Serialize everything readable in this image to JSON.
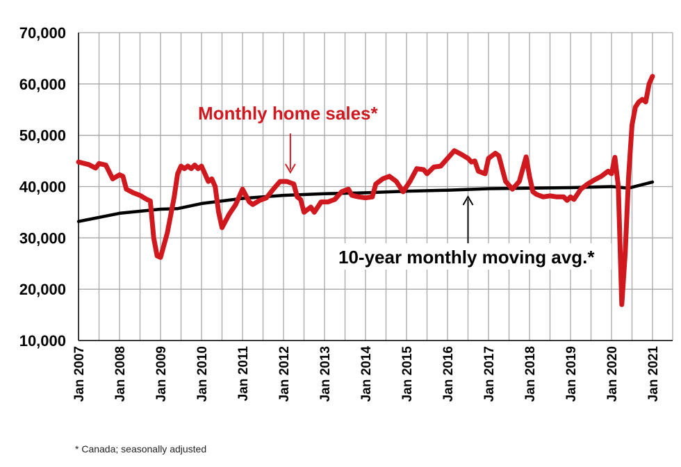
{
  "chart_data": {
    "type": "line",
    "title": "",
    "xlabel": "",
    "ylabel": "",
    "ylim": [
      10000,
      70000
    ],
    "yticks": [
      "10,000",
      "20,000",
      "30,000",
      "40,000",
      "50,000",
      "60,000",
      "70,000"
    ],
    "ytick_values": [
      10000,
      20000,
      30000,
      40000,
      50000,
      60000,
      70000
    ],
    "xticks": [
      "Jan 2007",
      "Jan 2008",
      "Jan 2009",
      "Jan 2010",
      "Jan 2011",
      "Jan 2012",
      "Jan 2013",
      "Jan 2014",
      "Jan 2015",
      "Jan 2016",
      "Jan 2017",
      "Jan 2018",
      "Jan 2019",
      "Jan 2020",
      "Jan 2021"
    ],
    "xlim": [
      "2007-01",
      "2021-01"
    ],
    "grid": true,
    "annotations": [
      {
        "text": "Monthly home sales*",
        "color": "#d0181f",
        "points_to": "2012-03"
      },
      {
        "text": "10-year monthly moving avg.*",
        "color": "#000000",
        "points_to": "2016-07"
      }
    ],
    "footnote": "* Canada; seasonally adjusted",
    "series": [
      {
        "name": "Monthly home sales*",
        "color": "#d0181f",
        "points": [
          [
            "2007-01",
            44800
          ],
          [
            "2007-04",
            44300
          ],
          [
            "2007-06",
            43600
          ],
          [
            "2007-07",
            44500
          ],
          [
            "2007-09",
            44200
          ],
          [
            "2007-11",
            41500
          ],
          [
            "2008-01",
            42300
          ],
          [
            "2008-02",
            42000
          ],
          [
            "2008-03",
            39500
          ],
          [
            "2008-05",
            38800
          ],
          [
            "2008-07",
            38300
          ],
          [
            "2008-09",
            37500
          ],
          [
            "2008-10",
            37200
          ],
          [
            "2008-11",
            30000
          ],
          [
            "2008-12",
            26500
          ],
          [
            "2009-01",
            26200
          ],
          [
            "2009-03",
            31000
          ],
          [
            "2009-05",
            38000
          ],
          [
            "2009-06",
            42500
          ],
          [
            "2009-07",
            44000
          ],
          [
            "2009-08",
            43500
          ],
          [
            "2009-09",
            44000
          ],
          [
            "2009-10",
            43500
          ],
          [
            "2009-11",
            44200
          ],
          [
            "2009-12",
            43500
          ],
          [
            "2010-01",
            44000
          ],
          [
            "2010-02",
            42500
          ],
          [
            "2010-03",
            41000
          ],
          [
            "2010-04",
            41500
          ],
          [
            "2010-05",
            40000
          ],
          [
            "2010-06",
            35000
          ],
          [
            "2010-07",
            32000
          ],
          [
            "2010-09",
            34500
          ],
          [
            "2010-11",
            36500
          ],
          [
            "2011-01",
            39500
          ],
          [
            "2011-03",
            37000
          ],
          [
            "2011-04",
            36500
          ],
          [
            "2011-06",
            37300
          ],
          [
            "2011-08",
            37800
          ],
          [
            "2011-10",
            39500
          ],
          [
            "2011-12",
            41000
          ],
          [
            "2012-02",
            41000
          ],
          [
            "2012-04",
            40500
          ],
          [
            "2012-05",
            38000
          ],
          [
            "2012-06",
            37500
          ],
          [
            "2012-07",
            35000
          ],
          [
            "2012-09",
            36000
          ],
          [
            "2012-10",
            35000
          ],
          [
            "2012-12",
            37000
          ],
          [
            "2013-02",
            37000
          ],
          [
            "2013-04",
            37500
          ],
          [
            "2013-06",
            39000
          ],
          [
            "2013-08",
            39500
          ],
          [
            "2013-09",
            38300
          ],
          [
            "2013-11",
            38000
          ],
          [
            "2014-01",
            37800
          ],
          [
            "2014-03",
            38000
          ],
          [
            "2014-04",
            40500
          ],
          [
            "2014-06",
            41500
          ],
          [
            "2014-08",
            42000
          ],
          [
            "2014-10",
            41000
          ],
          [
            "2014-12",
            39000
          ],
          [
            "2015-02",
            41000
          ],
          [
            "2015-04",
            43500
          ],
          [
            "2015-06",
            43300
          ],
          [
            "2015-07",
            42500
          ],
          [
            "2015-09",
            43800
          ],
          [
            "2015-11",
            44000
          ],
          [
            "2016-01",
            45500
          ],
          [
            "2016-03",
            47000
          ],
          [
            "2016-05",
            46300
          ],
          [
            "2016-07",
            45500
          ],
          [
            "2016-08",
            44800
          ],
          [
            "2016-09",
            45000
          ],
          [
            "2016-10",
            43000
          ],
          [
            "2016-12",
            42500
          ],
          [
            "2017-01",
            45500
          ],
          [
            "2017-03",
            46500
          ],
          [
            "2017-04",
            46000
          ],
          [
            "2017-06",
            41000
          ],
          [
            "2017-08",
            39500
          ],
          [
            "2017-10",
            41000
          ],
          [
            "2017-12",
            45800
          ],
          [
            "2018-01",
            42000
          ],
          [
            "2018-02",
            39000
          ],
          [
            "2018-03",
            38500
          ],
          [
            "2018-05",
            38000
          ],
          [
            "2018-07",
            38200
          ],
          [
            "2018-09",
            38000
          ],
          [
            "2018-11",
            38000
          ],
          [
            "2018-12",
            37300
          ],
          [
            "2019-01",
            38000
          ],
          [
            "2019-02",
            37500
          ],
          [
            "2019-04",
            39500
          ],
          [
            "2019-06",
            40500
          ],
          [
            "2019-08",
            41300
          ],
          [
            "2019-10",
            42000
          ],
          [
            "2019-12",
            43000
          ],
          [
            "2020-01",
            42500
          ],
          [
            "2020-02",
            45700
          ],
          [
            "2020-03",
            40000
          ],
          [
            "2020-04",
            17000
          ],
          [
            "2020-05",
            27000
          ],
          [
            "2020-06",
            42000
          ],
          [
            "2020-07",
            52000
          ],
          [
            "2020-08",
            55500
          ],
          [
            "2020-09",
            56500
          ],
          [
            "2020-10",
            57000
          ],
          [
            "2020-11",
            56500
          ],
          [
            "2020-12",
            60000
          ],
          [
            "2021-01",
            61500
          ]
        ]
      },
      {
        "name": "10-year monthly moving avg.*",
        "color": "#000000",
        "points": [
          [
            "2007-01",
            33200
          ],
          [
            "2008-01",
            34800
          ],
          [
            "2009-01",
            35600
          ],
          [
            "2009-06",
            35700
          ],
          [
            "2010-01",
            36700
          ],
          [
            "2011-01",
            37700
          ],
          [
            "2012-01",
            38300
          ],
          [
            "2013-01",
            38600
          ],
          [
            "2014-01",
            38800
          ],
          [
            "2015-01",
            39100
          ],
          [
            "2016-01",
            39300
          ],
          [
            "2017-01",
            39600
          ],
          [
            "2018-01",
            39700
          ],
          [
            "2019-01",
            39800
          ],
          [
            "2020-01",
            40000
          ],
          [
            "2020-06",
            39700
          ],
          [
            "2021-01",
            40900
          ]
        ]
      }
    ]
  }
}
